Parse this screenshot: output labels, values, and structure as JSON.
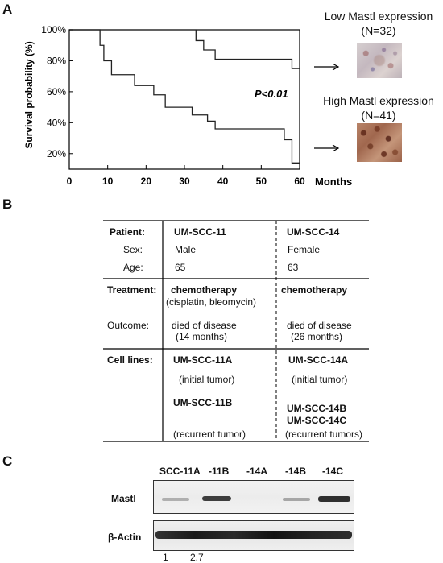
{
  "panels": {
    "a": "A",
    "b": "B",
    "c": "C"
  },
  "chart_data": {
    "type": "line",
    "title": "",
    "xlabel": "Months",
    "ylabel": "Survival probability (%)",
    "xlim": [
      0,
      60
    ],
    "ylim": [
      10,
      100
    ],
    "x_ticks": [
      "0",
      "10",
      "20",
      "30",
      "40",
      "50",
      "60"
    ],
    "y_ticks": [
      "20%",
      "40%",
      "60%",
      "80%",
      "100%"
    ],
    "annotation": "P<0.01",
    "series": [
      {
        "name": "Low Mastl expression",
        "steps": [
          [
            0,
            100
          ],
          [
            33,
            100
          ],
          [
            33,
            93
          ],
          [
            35,
            93
          ],
          [
            35,
            87
          ],
          [
            38,
            87
          ],
          [
            38,
            81
          ],
          [
            58,
            81
          ],
          [
            58,
            75
          ],
          [
            60,
            75
          ]
        ]
      },
      {
        "name": "High Mastl expression",
        "steps": [
          [
            0,
            100
          ],
          [
            8,
            100
          ],
          [
            8,
            90
          ],
          [
            9,
            90
          ],
          [
            9,
            80
          ],
          [
            11,
            80
          ],
          [
            11,
            71
          ],
          [
            17,
            71
          ],
          [
            17,
            64
          ],
          [
            22,
            64
          ],
          [
            22,
            58
          ],
          [
            25,
            58
          ],
          [
            25,
            50
          ],
          [
            32,
            50
          ],
          [
            32,
            45
          ],
          [
            36,
            45
          ],
          [
            36,
            41
          ],
          [
            38,
            41
          ],
          [
            38,
            36
          ],
          [
            56,
            36
          ],
          [
            56,
            29
          ],
          [
            58,
            29
          ],
          [
            58,
            14
          ],
          [
            60,
            14
          ]
        ]
      }
    ]
  },
  "legend": {
    "low": {
      "title": "Low Mastl expression",
      "n": "(N=32)"
    },
    "high": {
      "title": "High Mastl expression",
      "n": "(N=41)"
    }
  },
  "table": {
    "patient_label": "Patient:",
    "patient1": "UM-SCC-11",
    "patient2": "UM-SCC-14",
    "sex_label": "Sex:",
    "sex1": "Male",
    "sex2": "Female",
    "age_label": "Age:",
    "age1": "65",
    "age2": "63",
    "treatment_label": "Treatment:",
    "treatment1": "chemotherapy",
    "treatment1_detail": "(cisplatin, bleomycin)",
    "treatment2": "chemotherapy",
    "outcome_label": "Outcome:",
    "outcome1_line1": "died of disease",
    "outcome1_line2": "(14 months)",
    "outcome2_line1": "died of disease",
    "outcome2_line2": "(26 months)",
    "cell_lines_label": "Cell lines:",
    "cl1a": "UM-SCC-11A",
    "cl1a_note": "(initial tumor)",
    "cl1b": "UM-SCC-11B",
    "cl1b_note": "(recurrent tumor)",
    "cl2a": "UM-SCC-14A",
    "cl2a_note": "(initial tumor)",
    "cl2b": "UM-SCC-14B",
    "cl2c": "UM-SCC-14C",
    "cl2bc_note": "(recurrent tumors)"
  },
  "western": {
    "lanes": [
      "SCC-11A",
      "-11B",
      "-14A",
      "-14B",
      "-14C"
    ],
    "row1_label": "Mastl",
    "row2_label": "β-Actin",
    "quant": [
      "1",
      "2.7"
    ]
  }
}
